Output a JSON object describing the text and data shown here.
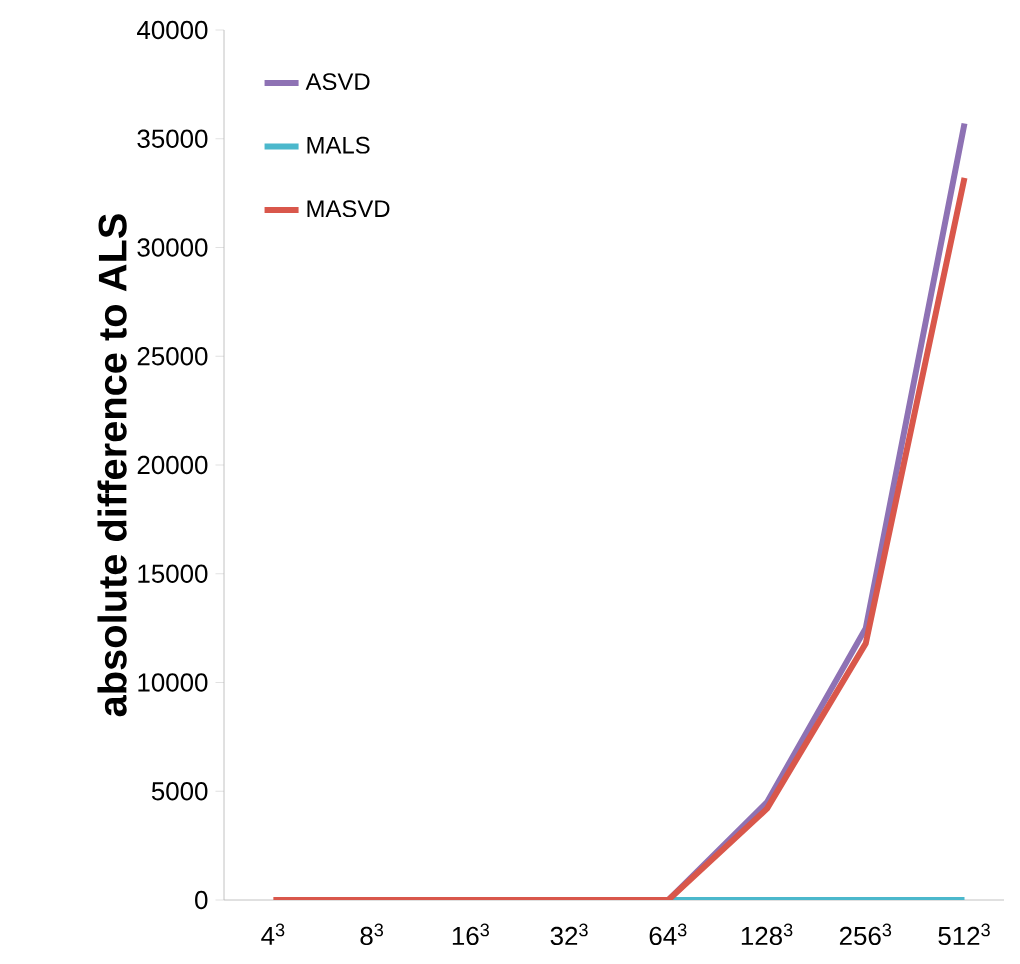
{
  "chart_data": {
    "type": "line",
    "ylabel": "absolute difference to ALS",
    "categories": [
      "4$^{3}$",
      "8$^{3}$",
      "16$^{3}$",
      "32$^{3}$",
      "64$^{3}$",
      "128$^{3}$",
      "256$^{3}$",
      "512$^{3}$"
    ],
    "series": [
      {
        "name": "ASVD",
        "color": "#8e72b4",
        "values": [
          null,
          null,
          null,
          null,
          0,
          4500,
          12500,
          35700
        ]
      },
      {
        "name": "MALS",
        "color": "#4bb8cc",
        "values": [
          null,
          null,
          null,
          null,
          0,
          0,
          0,
          0
        ]
      },
      {
        "name": "MASVD",
        "color": "#d9574b",
        "values": [
          0,
          0,
          0,
          0,
          0,
          4200,
          11800,
          33200
        ]
      }
    ],
    "ylim": [
      0,
      40000
    ],
    "yticks": [
      0,
      5000,
      10000,
      15000,
      20000,
      25000,
      30000,
      35000,
      40000
    ],
    "legend": "top left",
    "marker": "none",
    "line_style": "solid",
    "grid": false
  }
}
